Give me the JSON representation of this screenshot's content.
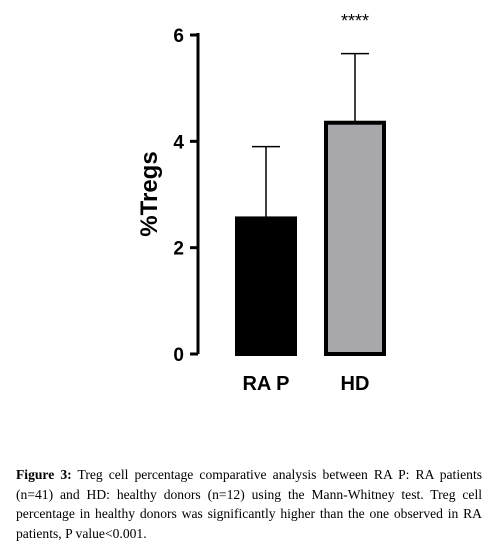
{
  "chart_data": {
    "type": "bar",
    "categories": [
      "RA P",
      "HD"
    ],
    "values": [
      2.55,
      4.35
    ],
    "error_upper": [
      3.9,
      5.65
    ],
    "ylabel": "%Tregs",
    "ylim": [
      0,
      6
    ],
    "yticks": [
      "0",
      "2",
      "4",
      "6"
    ],
    "bar_colors": [
      "#000000",
      "#a8a8ac"
    ],
    "annotations": [
      {
        "category": "HD",
        "text": "****"
      }
    ],
    "grid": false,
    "legend": "none"
  },
  "caption": {
    "lead": "Figure 3:",
    "text": "Treg cell percentage comparative analysis between RA P: RA patients (n=41) and HD: healthy donors (n=12) using the Mann-Whitney test. Treg cell percentage in healthy donors was significantly higher than the one observed in RA patients, P value<0.001."
  }
}
